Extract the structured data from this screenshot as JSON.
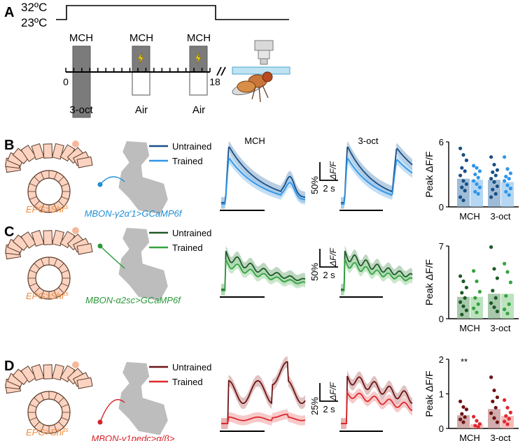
{
  "panel_letters": {
    "a": "A",
    "b": "B",
    "c": "C",
    "d": "D"
  },
  "panelA": {
    "temp_high": "32ºC",
    "temp_low": "23ºC",
    "odor_labels": [
      "MCH",
      "MCH",
      "MCH"
    ],
    "bottom_labels": [
      "3-oct",
      "Air",
      "Air"
    ],
    "axis_start": "0",
    "axis_end": "18",
    "shock_icon": "lightning-bolt-icon",
    "fly_icon": "fruit-fly-icon",
    "microscope_icon": "microscope-objective-icon"
  },
  "rows": [
    {
      "id": "b",
      "genotype_left": "EPG>Shi",
      "genotype_left_sup": "ts",
      "mbon_label_lines": [
        "MBON-γ2α′1>GCaMP6f"
      ],
      "mbon_color": "#1f8fd6",
      "legend": [
        "Untrained",
        "Trained"
      ],
      "trace_titles": [
        "MCH",
        "3-oct"
      ],
      "scale_y": "50%",
      "scale_x": "2 s",
      "scale_unit": "ΔF/F",
      "colors": {
        "untrained": "#1a4f86",
        "trained": "#2f95e8",
        "untrained_band": "#7fa6c9",
        "trained_band": "#9cc9ef"
      }
    },
    {
      "id": "c",
      "genotype_left": "EPG>Shi",
      "genotype_left_sup": "ts",
      "mbon_label_lines": [
        "MBON-α2sc>GCaMP6f"
      ],
      "mbon_color": "#2a9a3a",
      "legend": [
        "Untrained",
        "Trained"
      ],
      "trace_titles": [
        "",
        ""
      ],
      "scale_y": "50%",
      "scale_x": "2 s",
      "scale_unit": "ΔF/F",
      "colors": {
        "untrained": "#1e5a26",
        "trained": "#34a341",
        "untrained_band": "#8bb78f",
        "trained_band": "#a6d9a8"
      }
    },
    {
      "id": "d",
      "genotype_left": "EPG>Shi",
      "genotype_left_sup": "ts",
      "mbon_label_lines": [
        "MBON-γ1pedc>α/β>",
        "GCaMP6f"
      ],
      "mbon_color": "#d6222a",
      "legend": [
        "Untrained",
        "Trained"
      ],
      "trace_titles": [
        "",
        ""
      ],
      "scale_y": "25%",
      "scale_x": "2 s",
      "scale_unit": "ΔF/F",
      "colors": {
        "untrained": "#6e1414",
        "trained": "#e0282e",
        "untrained_band": "#c49090",
        "trained_band": "#f1a6a6"
      }
    }
  ],
  "chart_data": [
    {
      "type": "bar",
      "panel": "B",
      "ylabel": "Peak ΔF/F",
      "ylim": [
        0,
        6
      ],
      "yticks": [
        "0",
        "6"
      ],
      "categories": [
        "MCH",
        "3-oct"
      ],
      "series": [
        {
          "name": "Untrained",
          "values": [
            2.6,
            2.5
          ],
          "points": [
            [
              5.4,
              4.8,
              4.3,
              3.6,
              3.3,
              2.9,
              2.4,
              2.1,
              1.8,
              1.5,
              0.9,
              0.6
            ],
            [
              4.6,
              3.9,
              3.4,
              3.2,
              2.9,
              2.6,
              2.3,
              1.9,
              1.6,
              1.2,
              0.9
            ]
          ]
        },
        {
          "name": "Trained",
          "values": [
            2.5,
            2.3
          ],
          "points": [
            [
              3.8,
              3.6,
              3.3,
              3.0,
              2.7,
              2.4,
              2.1,
              1.8,
              1.4,
              1.2
            ],
            [
              4.6,
              3.5,
              3.1,
              2.8,
              2.6,
              2.4,
              2.0,
              1.7,
              1.4,
              1.1
            ]
          ]
        }
      ],
      "annotations": []
    },
    {
      "type": "bar",
      "panel": "C",
      "ylabel": "Peak ΔF/F",
      "ylim": [
        0,
        7
      ],
      "yticks": [
        "0",
        "7"
      ],
      "categories": [
        "MCH",
        "3-oct"
      ],
      "series": [
        {
          "name": "Untrained",
          "values": [
            2.1,
            2.4
          ],
          "points": [
            [
              4.1,
              3.6,
              3.0,
              2.5,
              2.0,
              1.6,
              1.2,
              0.8,
              0.4
            ],
            [
              6.9,
              4.8,
              3.9,
              2.7,
              2.0,
              1.5,
              1.1,
              0.7
            ]
          ]
        },
        {
          "name": "Trained",
          "values": [
            2.1,
            2.4
          ],
          "points": [
            [
              4.6,
              3.6,
              2.6,
              2.0,
              1.4,
              1.0,
              0.6
            ],
            [
              5.3,
              4.5,
              3.5,
              2.2,
              1.4,
              0.9,
              0.5
            ]
          ]
        }
      ],
      "annotations": []
    },
    {
      "type": "bar",
      "panel": "D",
      "ylabel": "Peak ΔF/F",
      "ylim": [
        0,
        2
      ],
      "yticks": [
        "0",
        "1",
        "2"
      ],
      "categories": [
        "MCH",
        "3-oct"
      ],
      "series": [
        {
          "name": "Untrained",
          "values": [
            0.38,
            0.56
          ],
          "points": [
            [
              0.78,
              0.62,
              0.55,
              0.42,
              0.33,
              0.26,
              0.18
            ],
            [
              1.48,
              1.1,
              0.9,
              0.78,
              0.6,
              0.44,
              0.3,
              0.18
            ]
          ]
        },
        {
          "name": "Trained",
          "values": [
            0.12,
            0.36
          ],
          "points": [
            [
              0.34,
              0.22,
              0.13,
              0.08,
              0.04
            ],
            [
              0.82,
              0.6,
              0.46,
              0.36,
              0.28,
              0.2,
              0.12
            ]
          ]
        }
      ],
      "annotations": [
        "**"
      ]
    }
  ]
}
